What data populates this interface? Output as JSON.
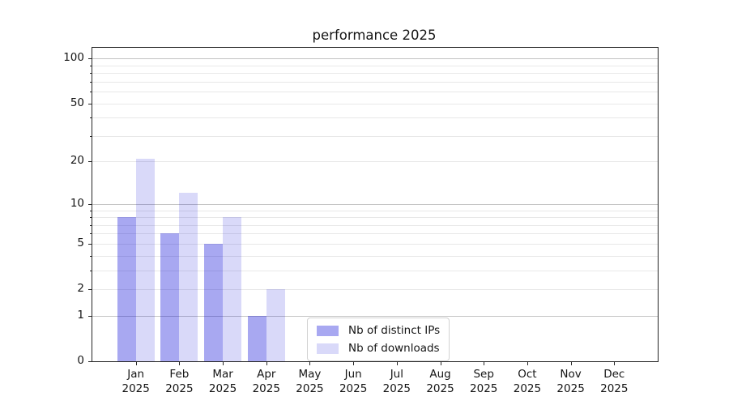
{
  "chart_data": {
    "type": "bar",
    "title": "performance 2025",
    "x_categories": [
      {
        "month": "Jan",
        "year": "2025"
      },
      {
        "month": "Feb",
        "year": "2025"
      },
      {
        "month": "Mar",
        "year": "2025"
      },
      {
        "month": "Apr",
        "year": "2025"
      },
      {
        "month": "May",
        "year": "2025"
      },
      {
        "month": "Jun",
        "year": "2025"
      },
      {
        "month": "Jul",
        "year": "2025"
      },
      {
        "month": "Aug",
        "year": "2025"
      },
      {
        "month": "Sep",
        "year": "2025"
      },
      {
        "month": "Oct",
        "year": "2025"
      },
      {
        "month": "Nov",
        "year": "2025"
      },
      {
        "month": "Dec",
        "year": "2025"
      }
    ],
    "series": [
      {
        "name": "Nb of distinct IPs",
        "color": "rgba(0,0,213,0.34)",
        "color_over_white": "#a8a8f0",
        "values": [
          8,
          6,
          5,
          1,
          0,
          0,
          0,
          0,
          0,
          0,
          0,
          0
        ]
      },
      {
        "name": "Nb of downloads",
        "color": "rgba(0,0,213,0.15)",
        "color_over_white": "#d9d9fa",
        "values": [
          21,
          12,
          8,
          2,
          0,
          0,
          0,
          0,
          0,
          0,
          0,
          0
        ]
      }
    ],
    "y_scale": "log1p",
    "ylim": [
      0,
      118
    ],
    "y_ticks_labeled": [
      0,
      1,
      2,
      5,
      10,
      20,
      50,
      100
    ],
    "y_gridlines_dark": [
      1,
      10,
      100
    ],
    "y_gridlines_light": [
      2,
      3,
      4,
      5,
      6,
      7,
      8,
      9,
      20,
      30,
      40,
      50,
      60,
      70,
      80,
      90
    ],
    "y_minor_tickmarks": [
      3,
      4,
      6,
      7,
      8,
      9,
      30,
      40,
      60,
      70,
      80,
      90
    ],
    "grid": "on",
    "legend": {
      "position": "lower center",
      "items": [
        "Nb of distinct IPs",
        "Nb of downloads"
      ]
    }
  },
  "colors": {
    "grid_major": "#c4c4c4",
    "grid_minor": "#e8e8e8",
    "spine": "#262626",
    "text": "#151515",
    "legend_border": "#d2d2d2"
  }
}
